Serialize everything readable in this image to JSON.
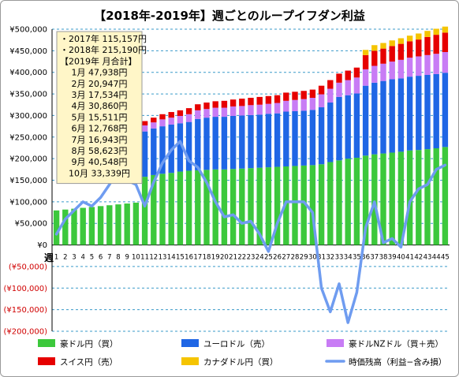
{
  "chart_data": {
    "type": "bar",
    "title": "【2018年-2019年】週ごとのループイフダン利益",
    "xlabel": "週",
    "ylabel": "",
    "ylim": [
      -200000,
      500000
    ],
    "yticks": [
      {
        "value": 500000,
        "label": "¥500,000"
      },
      {
        "value": 450000,
        "label": "¥450,000"
      },
      {
        "value": 400000,
        "label": "¥400,000"
      },
      {
        "value": 350000,
        "label": "¥350,000"
      },
      {
        "value": 300000,
        "label": "¥300,000"
      },
      {
        "value": 250000,
        "label": "¥250,000"
      },
      {
        "value": 200000,
        "label": "¥200,000"
      },
      {
        "value": 150000,
        "label": "¥150,000"
      },
      {
        "value": 100000,
        "label": "¥100,000"
      },
      {
        "value": 50000,
        "label": "¥50,000"
      },
      {
        "value": 0,
        "label": "¥0"
      },
      {
        "value": -50000,
        "label": "(¥50,000)"
      },
      {
        "value": -100000,
        "label": "(¥100,000)"
      },
      {
        "value": -150000,
        "label": "(¥150,000)"
      },
      {
        "value": -200000,
        "label": "(¥200,000)"
      }
    ],
    "categories": [
      "1",
      "2",
      "3",
      "4",
      "5",
      "6",
      "7",
      "8",
      "9",
      "10",
      "11",
      "12",
      "13",
      "14",
      "15",
      "16",
      "17",
      "18",
      "19",
      "20",
      "21",
      "22",
      "23",
      "24",
      "25",
      "26",
      "27",
      "28",
      "29",
      "30",
      "31",
      "32",
      "33",
      "34",
      "35",
      "36",
      "37",
      "38",
      "39",
      "40",
      "41",
      "42",
      "43",
      "44",
      "45"
    ],
    "series": [
      {
        "name": "豪ドル円（買）",
        "color": "#3cc83c",
        "values": [
          80000,
          82000,
          84000,
          86000,
          88000,
          90000,
          92000,
          94000,
          96000,
          98000,
          158000,
          162000,
          165000,
          167000,
          170000,
          172000,
          173000,
          174000,
          175000,
          175000,
          176000,
          177000,
          178000,
          179000,
          180000,
          181000,
          182000,
          183000,
          184000,
          185000,
          187000,
          192000,
          196000,
          200000,
          202000,
          207000,
          210000,
          212000,
          214000,
          216000,
          219000,
          220000,
          222000,
          224000,
          227000
        ]
      },
      {
        "name": "ユーロドル（売）",
        "color": "#1f66e5",
        "values": [
          0,
          0,
          0,
          0,
          0,
          0,
          0,
          0,
          0,
          0,
          105000,
          108000,
          110000,
          112000,
          112000,
          113000,
          119000,
          121000,
          122000,
          122000,
          123000,
          123000,
          123000,
          123000,
          124000,
          124000,
          127000,
          127000,
          127000,
          128000,
          132000,
          138000,
          147000,
          147000,
          149000,
          162000,
          166000,
          168000,
          170000,
          170000,
          171000,
          172000,
          172000,
          172000,
          172000
        ]
      },
      {
        "name": "豪ドルNZドル（買＋売）",
        "color": "#c87cf5",
        "values": [
          0,
          0,
          0,
          0,
          0,
          0,
          0,
          0,
          0,
          0,
          14000,
          14000,
          16000,
          16000,
          17000,
          18000,
          20000,
          20000,
          21000,
          21000,
          22000,
          22000,
          23000,
          23000,
          23000,
          24000,
          25000,
          26000,
          27000,
          28000,
          30000,
          32000,
          33000,
          35000,
          37000,
          38000,
          39000,
          40000,
          41000,
          43000,
          44000,
          45000,
          46000,
          47000,
          48000
        ]
      },
      {
        "name": "スイス円（売）",
        "color": "#e60000",
        "values": [
          0,
          0,
          0,
          0,
          0,
          0,
          0,
          0,
          0,
          0,
          10000,
          11000,
          12000,
          13000,
          13000,
          14000,
          14000,
          15000,
          15000,
          16000,
          16000,
          17000,
          17000,
          18000,
          18000,
          18000,
          19000,
          19000,
          19000,
          19000,
          20000,
          20000,
          21000,
          22000,
          23000,
          33000,
          35000,
          35000,
          36000,
          37000,
          38000,
          39000,
          42000,
          44000,
          45000
        ]
      },
      {
        "name": "カナダドル円（買）",
        "color": "#f5c400",
        "values": [
          0,
          0,
          0,
          0,
          0,
          0,
          0,
          0,
          0,
          0,
          0,
          0,
          0,
          0,
          0,
          0,
          0,
          0,
          0,
          0,
          0,
          0,
          0,
          0,
          0,
          0,
          0,
          0,
          0,
          0,
          0,
          0,
          0,
          0,
          0,
          12000,
          13000,
          13000,
          13000,
          13000,
          13000,
          14000,
          14000,
          14000,
          14000
        ]
      },
      {
        "name": "時価残高（利益−含み損）",
        "color": "#6f9cf0",
        "type": "line",
        "values": [
          25000,
          60000,
          80000,
          100000,
          90000,
          110000,
          140000,
          175000,
          150000,
          140000,
          90000,
          145000,
          190000,
          220000,
          240000,
          195000,
          180000,
          145000,
          100000,
          65000,
          70000,
          50000,
          55000,
          25000,
          -15000,
          50000,
          100000,
          100000,
          100000,
          75000,
          -100000,
          -155000,
          -90000,
          -180000,
          -110000,
          40000,
          100000,
          5000,
          15000,
          -5000,
          100000,
          130000,
          140000,
          175000,
          185000
        ]
      }
    ],
    "legend_position": "bottom",
    "grid": true,
    "annotation": {
      "lines": [
        "・2017年 115,157円",
        "・2018年 215,190円",
        "【2019年 月合計】",
        "1月 47,938円",
        "2月 20,947円",
        "3月 17,534円",
        "4月 30,860円",
        "5月 15,511円",
        "6月 12,768円",
        "7月 16,943円",
        "8月 58,623円",
        "9月 40,548円",
        "10月 33,339円"
      ]
    }
  }
}
